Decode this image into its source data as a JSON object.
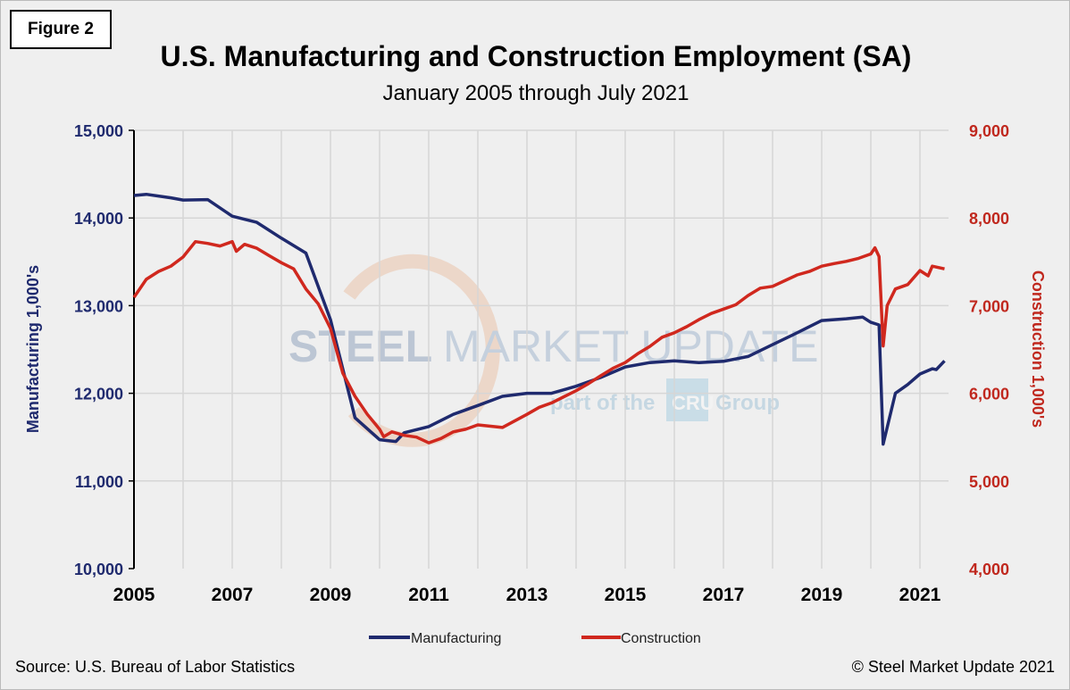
{
  "figure_label": "Figure 2",
  "source": "Source: U.S. Bureau  of Labor Statistics",
  "copyright": "© Steel Market Update 2021",
  "watermark": {
    "line1a": "STEEL",
    "line1b": "MARKET UPDATE",
    "line2a": "part of the",
    "line2b": "CRU",
    "line2c": "Group"
  },
  "chart_data": {
    "type": "line",
    "title": "U.S. Manufacturing and Construction Employment (SA)",
    "subtitle": "January 2005 through July 2021",
    "xlabel": "",
    "ylabel_left": "Manufacturing 1,000's",
    "ylabel_right": "Construction 1,000's",
    "ylim_left": [
      10000,
      15000
    ],
    "ylim_right": [
      4000,
      9000
    ],
    "yticks_left": [
      "10,000",
      "11,000",
      "12,000",
      "13,000",
      "14,000",
      "15,000"
    ],
    "yticks_right": [
      "4,000",
      "5,000",
      "6,000",
      "7,000",
      "8,000",
      "9,000"
    ],
    "xticks": [
      "2005",
      "2007",
      "2009",
      "2011",
      "2013",
      "2015",
      "2017",
      "2019",
      "2021"
    ],
    "grid": true,
    "legend_position": "bottom",
    "colors": {
      "manufacturing": "#1f2a6e",
      "construction": "#d0281e",
      "left_axis": "#1f2a6e",
      "right_axis": "#c0281e"
    },
    "series": [
      {
        "name": "Manufacturing",
        "axis": "left",
        "points": [
          [
            "2005-01",
            14257
          ],
          [
            "2005-04",
            14270
          ],
          [
            "2005-10",
            14230
          ],
          [
            "2006-01",
            14205
          ],
          [
            "2006-07",
            14210
          ],
          [
            "2007-01",
            14020
          ],
          [
            "2007-07",
            13950
          ],
          [
            "2008-01",
            13770
          ],
          [
            "2008-07",
            13600
          ],
          [
            "2009-01",
            12840
          ],
          [
            "2009-07",
            11720
          ],
          [
            "2010-01",
            11470
          ],
          [
            "2010-05",
            11450
          ],
          [
            "2010-07",
            11550
          ],
          [
            "2011-01",
            11620
          ],
          [
            "2011-07",
            11760
          ],
          [
            "2012-01",
            11860
          ],
          [
            "2012-07",
            11965
          ],
          [
            "2013-01",
            12000
          ],
          [
            "2013-07",
            12000
          ],
          [
            "2014-01",
            12080
          ],
          [
            "2014-07",
            12180
          ],
          [
            "2015-01",
            12300
          ],
          [
            "2015-07",
            12350
          ],
          [
            "2016-01",
            12370
          ],
          [
            "2016-07",
            12350
          ],
          [
            "2017-01",
            12365
          ],
          [
            "2017-07",
            12420
          ],
          [
            "2018-01",
            12555
          ],
          [
            "2018-07",
            12690
          ],
          [
            "2019-01",
            12830
          ],
          [
            "2019-07",
            12850
          ],
          [
            "2019-11",
            12870
          ],
          [
            "2020-01",
            12810
          ],
          [
            "2020-03",
            12780
          ],
          [
            "2020-04",
            11420
          ],
          [
            "2020-07",
            12000
          ],
          [
            "2020-10",
            12100
          ],
          [
            "2021-01",
            12220
          ],
          [
            "2021-04",
            12280
          ],
          [
            "2021-05",
            12270
          ],
          [
            "2021-07",
            12370
          ]
        ]
      },
      {
        "name": "Construction",
        "axis": "right",
        "points": [
          [
            "2005-01",
            7095
          ],
          [
            "2005-04",
            7300
          ],
          [
            "2005-07",
            7390
          ],
          [
            "2005-10",
            7450
          ],
          [
            "2006-01",
            7555
          ],
          [
            "2006-04",
            7730
          ],
          [
            "2006-07",
            7710
          ],
          [
            "2006-10",
            7680
          ],
          [
            "2007-01",
            7730
          ],
          [
            "2007-02",
            7620
          ],
          [
            "2007-04",
            7700
          ],
          [
            "2007-07",
            7655
          ],
          [
            "2007-10",
            7570
          ],
          [
            "2008-01",
            7490
          ],
          [
            "2008-04",
            7420
          ],
          [
            "2008-07",
            7190
          ],
          [
            "2008-10",
            7020
          ],
          [
            "2009-01",
            6740
          ],
          [
            "2009-04",
            6230
          ],
          [
            "2009-07",
            5965
          ],
          [
            "2009-10",
            5760
          ],
          [
            "2010-01",
            5590
          ],
          [
            "2010-02",
            5505
          ],
          [
            "2010-04",
            5560
          ],
          [
            "2010-07",
            5520
          ],
          [
            "2010-10",
            5500
          ],
          [
            "2011-01",
            5435
          ],
          [
            "2011-04",
            5485
          ],
          [
            "2011-07",
            5560
          ],
          [
            "2011-10",
            5590
          ],
          [
            "2012-01",
            5640
          ],
          [
            "2012-07",
            5610
          ],
          [
            "2013-01",
            5760
          ],
          [
            "2013-04",
            5840
          ],
          [
            "2013-07",
            5890
          ],
          [
            "2013-10",
            5960
          ],
          [
            "2014-01",
            6030
          ],
          [
            "2014-04",
            6110
          ],
          [
            "2014-07",
            6200
          ],
          [
            "2014-10",
            6285
          ],
          [
            "2015-01",
            6350
          ],
          [
            "2015-04",
            6450
          ],
          [
            "2015-07",
            6535
          ],
          [
            "2015-10",
            6640
          ],
          [
            "2016-01",
            6690
          ],
          [
            "2016-04",
            6760
          ],
          [
            "2016-07",
            6840
          ],
          [
            "2016-10",
            6910
          ],
          [
            "2017-01",
            6960
          ],
          [
            "2017-04",
            7010
          ],
          [
            "2017-07",
            7115
          ],
          [
            "2017-10",
            7200
          ],
          [
            "2018-01",
            7220
          ],
          [
            "2018-04",
            7285
          ],
          [
            "2018-07",
            7350
          ],
          [
            "2018-10",
            7390
          ],
          [
            "2019-01",
            7450
          ],
          [
            "2019-04",
            7480
          ],
          [
            "2019-07",
            7505
          ],
          [
            "2019-10",
            7540
          ],
          [
            "2020-01",
            7590
          ],
          [
            "2020-02",
            7660
          ],
          [
            "2020-03",
            7560
          ],
          [
            "2020-04",
            6540
          ],
          [
            "2020-05",
            7000
          ],
          [
            "2020-07",
            7190
          ],
          [
            "2020-10",
            7240
          ],
          [
            "2021-01",
            7400
          ],
          [
            "2021-03",
            7340
          ],
          [
            "2021-04",
            7450
          ],
          [
            "2021-07",
            7420
          ]
        ]
      }
    ]
  }
}
